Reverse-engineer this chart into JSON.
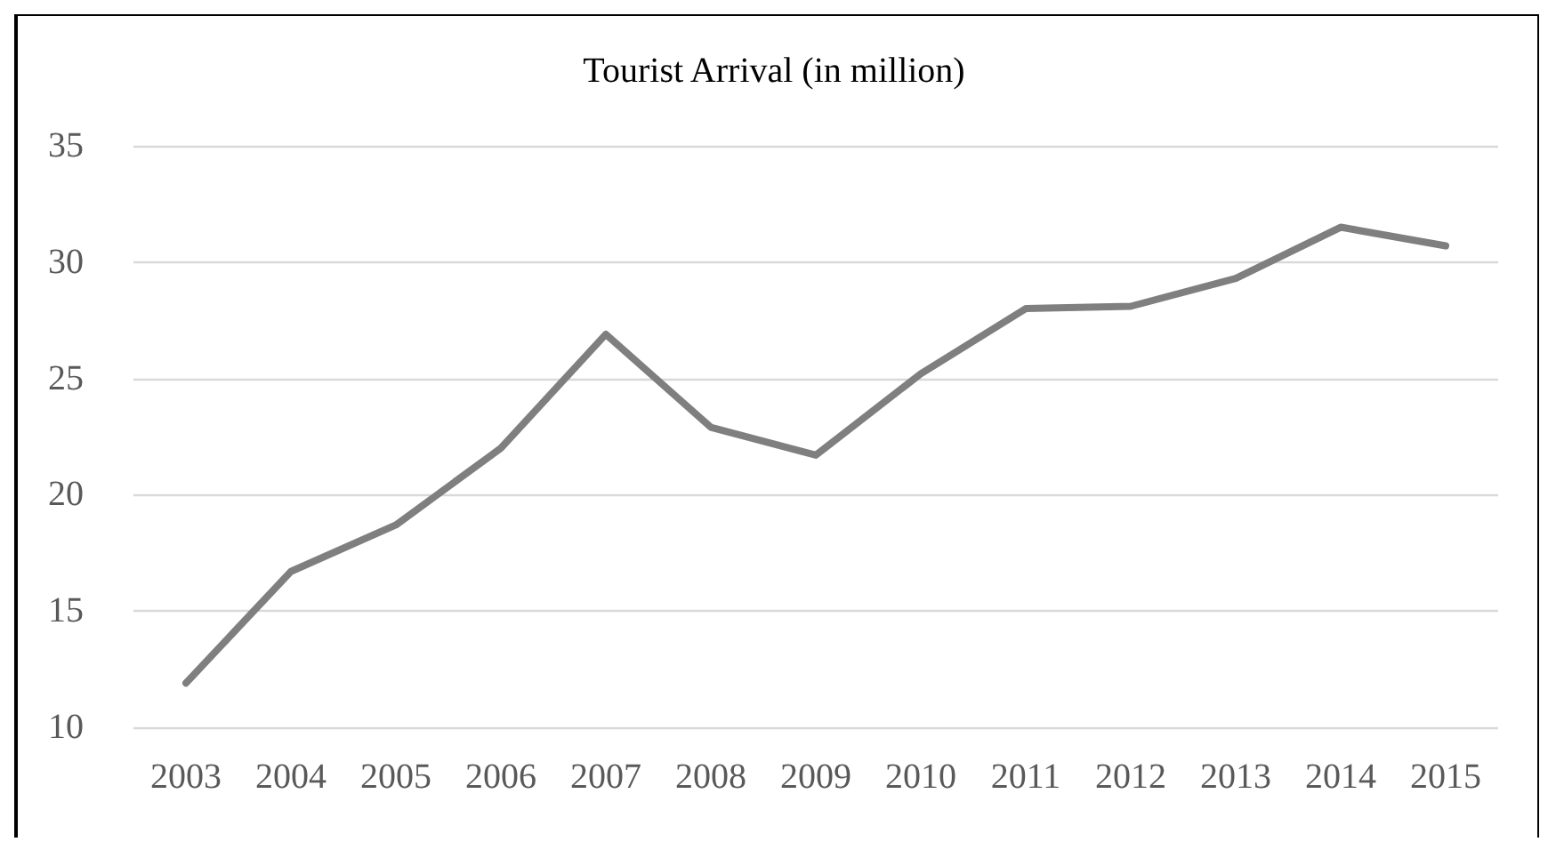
{
  "chart_data": {
    "type": "line",
    "title": "Tourist Arrival (in million)",
    "categories": [
      "2003",
      "2004",
      "2005",
      "2006",
      "2007",
      "2008",
      "2009",
      "2010",
      "2011",
      "2012",
      "2013",
      "2014",
      "2015"
    ],
    "series": [
      {
        "color": "#7f7f7f",
        "values": [
          11.9,
          16.7,
          18.7,
          22.0,
          26.9,
          22.9,
          21.7,
          25.2,
          28.0,
          28.1,
          29.3,
          31.5,
          30.7
        ]
      }
    ],
    "ylim": [
      10,
      35
    ],
    "yticks": [
      10,
      15,
      20,
      25,
      30,
      35
    ],
    "grid": "y",
    "marker": "none",
    "line_style": "solid"
  }
}
